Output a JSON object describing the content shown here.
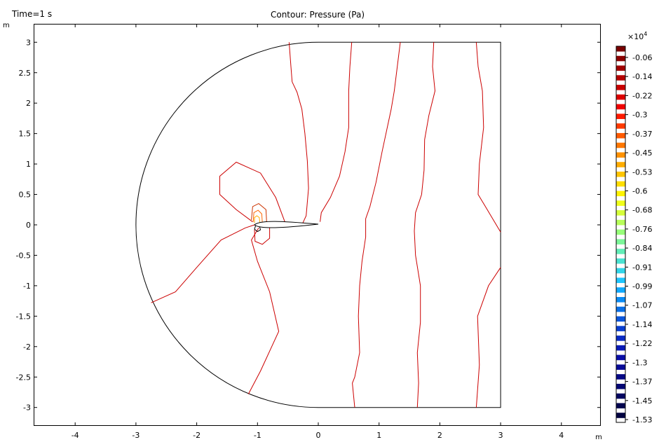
{
  "header": {
    "time_label": "Time=1 s",
    "plot_title": "Contour: Pressure (Pa)"
  },
  "chart_data": {
    "type": "contour",
    "title": "Contour: Pressure (Pa)",
    "time": "Time=1 s",
    "x_unit": "m",
    "y_unit": "m",
    "xlim": [
      -4.7,
      4.7
    ],
    "ylim": [
      -3.33,
      3.33
    ],
    "x_ticks": [
      -4,
      -3,
      -2,
      -1,
      0,
      1,
      2,
      3,
      4
    ],
    "x_tick_labels": [
      "-4",
      "-3",
      "-2",
      "-1",
      "0",
      "1",
      "2",
      "3",
      "4"
    ],
    "y_ticks": [
      3,
      2.5,
      2,
      1.5,
      1,
      0.5,
      0,
      -0.5,
      -1,
      -1.5,
      -2,
      -2.5,
      -3
    ],
    "y_tick_labels": [
      "3",
      "2.5",
      "2",
      "1.5",
      "1",
      "0.5",
      "0",
      "-0.5",
      "-1",
      "-1.5",
      "-2",
      "-2.5",
      "-3"
    ],
    "grid": false,
    "domain": {
      "semicircle_center": [
        0,
        0
      ],
      "semicircle_radius": 3,
      "rect_x": [
        0,
        3
      ],
      "rect_y": [
        -3,
        3
      ]
    },
    "airfoil": {
      "leading_edge": [
        -1.05,
        0
      ],
      "trailing_edge": [
        0,
        0
      ],
      "max_thickness": 0.12
    },
    "contour_lines": [
      {
        "color": "#cc0000",
        "points": [
          [
            -0.48,
            3.0
          ],
          [
            -0.45,
            2.6
          ],
          [
            -0.43,
            2.35
          ],
          [
            -0.35,
            2.18
          ],
          [
            -0.27,
            1.9
          ],
          [
            -0.22,
            1.5
          ],
          [
            -0.18,
            1.05
          ],
          [
            -0.16,
            0.6
          ],
          [
            -0.2,
            0.15
          ],
          [
            -0.26,
            0.02
          ]
        ]
      },
      {
        "color": "#cc0000",
        "points": [
          [
            0.55,
            3.0
          ],
          [
            0.52,
            2.6
          ],
          [
            0.5,
            2.2
          ],
          [
            0.5,
            1.6
          ],
          [
            0.44,
            1.2
          ],
          [
            0.35,
            0.8
          ],
          [
            0.2,
            0.45
          ],
          [
            0.05,
            0.2
          ],
          [
            0.03,
            0.05
          ]
        ]
      },
      {
        "color": "#cc0000",
        "points": [
          [
            1.35,
            3.0
          ],
          [
            1.3,
            2.6
          ],
          [
            1.25,
            2.2
          ],
          [
            1.2,
            1.9
          ],
          [
            1.05,
            1.2
          ],
          [
            0.95,
            0.7
          ],
          [
            0.85,
            0.3
          ],
          [
            0.78,
            0.1
          ],
          [
            0.78,
            -0.2
          ],
          [
            0.72,
            -0.6
          ],
          [
            0.68,
            -1.0
          ],
          [
            0.66,
            -1.5
          ],
          [
            0.68,
            -2.1
          ],
          [
            0.6,
            -2.5
          ],
          [
            0.56,
            -2.6
          ],
          [
            0.6,
            -3.0
          ]
        ]
      },
      {
        "color": "#cc0000",
        "points": [
          [
            1.9,
            3.0
          ],
          [
            1.88,
            2.6
          ],
          [
            1.92,
            2.2
          ],
          [
            1.82,
            1.8
          ],
          [
            1.75,
            1.4
          ],
          [
            1.74,
            0.9
          ],
          [
            1.7,
            0.5
          ],
          [
            1.6,
            0.2
          ],
          [
            1.58,
            -0.1
          ],
          [
            1.6,
            -0.5
          ],
          [
            1.68,
            -1.0
          ],
          [
            1.68,
            -1.6
          ],
          [
            1.63,
            -2.1
          ],
          [
            1.65,
            -2.6
          ],
          [
            1.63,
            -3.0
          ]
        ]
      },
      {
        "color": "#cc0000",
        "points": [
          [
            2.6,
            3.0
          ],
          [
            2.63,
            2.6
          ],
          [
            2.7,
            2.2
          ],
          [
            2.72,
            1.6
          ],
          [
            2.65,
            1.0
          ],
          [
            2.63,
            0.5
          ],
          [
            2.75,
            0.3
          ],
          [
            3.0,
            -0.12
          ]
        ]
      },
      {
        "color": "#cc0000",
        "points": [
          [
            3.0,
            -0.7
          ],
          [
            2.8,
            -1.0
          ],
          [
            2.62,
            -1.5
          ],
          [
            2.65,
            -2.3
          ],
          [
            2.6,
            -3.0
          ]
        ]
      },
      {
        "color": "#cc0000",
        "points": [
          [
            -2.75,
            -1.28
          ],
          [
            -2.35,
            -1.1
          ],
          [
            -2.0,
            -0.7
          ],
          [
            -1.6,
            -0.25
          ],
          [
            -1.2,
            -0.05
          ],
          [
            -1.05,
            0.0
          ]
        ]
      },
      {
        "color": "#cc0000",
        "points": [
          [
            -1.15,
            -2.78
          ],
          [
            -0.95,
            -2.4
          ],
          [
            -0.65,
            -1.75
          ],
          [
            -0.8,
            -1.1
          ],
          [
            -1.0,
            -0.6
          ],
          [
            -1.1,
            -0.25
          ],
          [
            -0.98,
            -0.05
          ]
        ]
      },
      {
        "color": "#cc0000",
        "points": [
          [
            -0.55,
            0.05
          ],
          [
            -0.7,
            0.45
          ],
          [
            -0.95,
            0.85
          ],
          [
            -1.35,
            1.03
          ],
          [
            -1.62,
            0.8
          ],
          [
            -1.62,
            0.5
          ],
          [
            -1.35,
            0.25
          ],
          [
            -1.08,
            0.05
          ]
        ]
      },
      {
        "color": "#cc3300",
        "points": [
          [
            -0.85,
            0.05
          ],
          [
            -0.86,
            0.25
          ],
          [
            -0.98,
            0.35
          ],
          [
            -1.08,
            0.3
          ],
          [
            -1.1,
            0.08
          ]
        ]
      },
      {
        "color": "#ff6600",
        "points": [
          [
            -0.92,
            0.03
          ],
          [
            -0.93,
            0.18
          ],
          [
            -0.99,
            0.24
          ],
          [
            -1.06,
            0.2
          ],
          [
            -1.07,
            0.05
          ]
        ]
      },
      {
        "color": "#ffaa00",
        "points": [
          [
            -0.96,
            0.02
          ],
          [
            -0.97,
            0.12
          ],
          [
            -1.01,
            0.15
          ],
          [
            -1.05,
            0.12
          ],
          [
            -1.05,
            0.03
          ]
        ]
      },
      {
        "color": "#cc0000",
        "points": [
          [
            -0.8,
            -0.02
          ],
          [
            -0.8,
            -0.22
          ],
          [
            -0.92,
            -0.32
          ],
          [
            -1.04,
            -0.27
          ],
          [
            -1.05,
            -0.08
          ]
        ]
      },
      {
        "color": "#000000",
        "points": [
          [
            -0.97,
            -0.02
          ],
          [
            -0.95,
            -0.08
          ],
          [
            -1.0,
            -0.11
          ],
          [
            -1.05,
            -0.07
          ],
          [
            -1.03,
            -0.01
          ]
        ]
      }
    ],
    "colorbar": {
      "exponent_label": "×10",
      "exponent_power": "4",
      "tick_labels": [
        "-0.06",
        "-0.14",
        "-0.22",
        "-0.3",
        "-0.37",
        "-0.45",
        "-0.53",
        "-0.6",
        "-0.68",
        "-0.76",
        "-0.84",
        "-0.91",
        "-0.99",
        "-1.07",
        "-1.14",
        "-1.22",
        "-1.3",
        "-1.37",
        "-1.45",
        "-1.53"
      ],
      "colors": [
        "#7a0000",
        "#8b0000",
        "#a00000",
        "#b40000",
        "#c80000",
        "#dc0000",
        "#f00000",
        "#ff1a00",
        "#ff3a00",
        "#ff5a00",
        "#ff7700",
        "#ff9200",
        "#ffad00",
        "#ffc600",
        "#ffdf00",
        "#fff400",
        "#f0ff1a",
        "#d6ff3a",
        "#b8ff5a",
        "#98ff7a",
        "#7cf79a",
        "#62eeb8",
        "#4ae3d2",
        "#32d6ea",
        "#1ec6ff",
        "#10aaff",
        "#0a8cf6",
        "#0a70e8",
        "#0a56dc",
        "#0a3ed0",
        "#0a2ac4",
        "#0a1ab6",
        "#0a0ea6",
        "#080a96",
        "#060884",
        "#040672",
        "#03055f",
        "#02044e",
        "#020340"
      ]
    }
  }
}
